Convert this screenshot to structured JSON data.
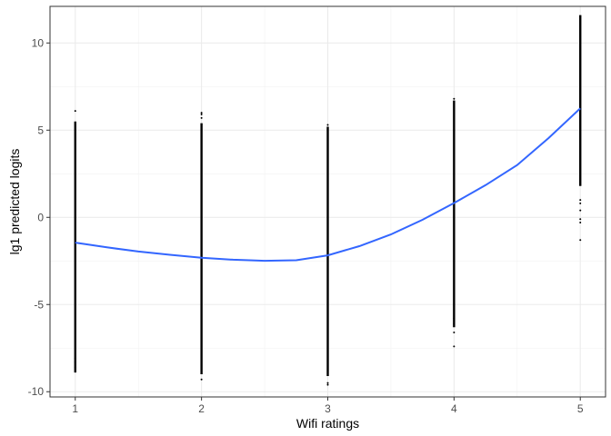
{
  "chart_data": {
    "type": "scatter",
    "title": "",
    "xlabel": "Wifi ratings",
    "ylabel": "lg1 predicted logits",
    "xlim": [
      0.8,
      5.2
    ],
    "ylim": [
      -10.3,
      12.1
    ],
    "x_ticks": [
      1,
      2,
      3,
      4,
      5
    ],
    "x_tick_labels": [
      "1",
      "2",
      "3",
      "4",
      "5"
    ],
    "y_ticks": [
      -10,
      -5,
      0,
      5,
      10
    ],
    "y_tick_labels": [
      "-10",
      "-5",
      "0",
      "5",
      "10"
    ],
    "grid": true,
    "legend": "none",
    "series": [
      {
        "kind": "point_range",
        "color": "#000000",
        "columns": [
          {
            "x": 1,
            "min": -8.9,
            "max": 5.5,
            "outliers": [
              6.1,
              -8.6,
              -8.3,
              -8.1
            ]
          },
          {
            "x": 2,
            "min": -9.0,
            "max": 5.4,
            "outliers": [
              5.9,
              5.7,
              6.0,
              -9.3
            ]
          },
          {
            "x": 3,
            "min": -9.1,
            "max": 5.2,
            "outliers": [
              5.3,
              -9.5,
              -9.6,
              -8.9
            ]
          },
          {
            "x": 4,
            "min": -6.3,
            "max": 6.7,
            "outliers": [
              6.8,
              -6.6,
              -7.4,
              -5.8,
              -6.1
            ]
          },
          {
            "x": 5,
            "min": 1.8,
            "max": 11.6,
            "outliers": [
              0.4,
              -0.1,
              -0.3,
              0.8,
              1.0,
              -1.3
            ]
          }
        ]
      },
      {
        "kind": "smooth",
        "color": "#3366ff",
        "x": [
          1.0,
          1.25,
          1.5,
          1.75,
          2.0,
          2.25,
          2.5,
          2.75,
          3.0,
          3.25,
          3.5,
          3.75,
          4.0,
          4.25,
          4.5,
          4.75,
          5.0
        ],
        "y": [
          -1.45,
          -1.72,
          -1.96,
          -2.15,
          -2.32,
          -2.43,
          -2.49,
          -2.46,
          -2.18,
          -1.65,
          -0.98,
          -0.14,
          0.82,
          1.85,
          3.0,
          4.55,
          6.25
        ]
      }
    ]
  }
}
